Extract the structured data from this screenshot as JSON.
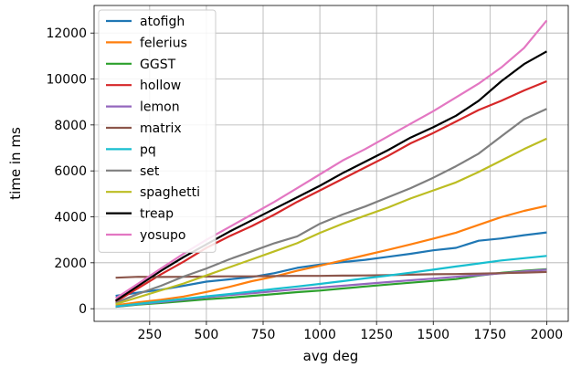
{
  "chart_data": {
    "type": "line",
    "title": "",
    "xlabel": "avg deg",
    "ylabel": "time in ms",
    "xlim": [
      5,
      2095
    ],
    "ylim": [
      -550,
      13200
    ],
    "xticks": [
      250,
      500,
      750,
      1000,
      1250,
      1500,
      1750,
      2000
    ],
    "yticks": [
      0,
      2000,
      4000,
      6000,
      8000,
      10000,
      12000
    ],
    "grid": true,
    "legend": "top-left",
    "x": [
      100,
      200,
      300,
      400,
      500,
      600,
      700,
      800,
      900,
      1000,
      1100,
      1200,
      1300,
      1400,
      1500,
      1600,
      1700,
      1800,
      1900,
      2000
    ],
    "series": [
      {
        "name": "atofigh",
        "color": "#1f77b4",
        "values": [
          560,
          700,
          830,
          1000,
          1180,
          1280,
          1380,
          1550,
          1780,
          1920,
          2030,
          2130,
          2260,
          2390,
          2540,
          2650,
          2960,
          3060,
          3200,
          3320
        ]
      },
      {
        "name": "felerius",
        "color": "#ff7f0e",
        "values": [
          150,
          280,
          390,
          530,
          730,
          950,
          1200,
          1400,
          1650,
          1870,
          2100,
          2330,
          2560,
          2800,
          3050,
          3310,
          3650,
          3990,
          4260,
          4480
        ]
      },
      {
        "name": "GGST",
        "color": "#2ca02c",
        "values": [
          80,
          180,
          250,
          330,
          410,
          480,
          560,
          640,
          720,
          790,
          880,
          970,
          1050,
          1130,
          1210,
          1290,
          1440,
          1560,
          1650,
          1720
        ]
      },
      {
        "name": "hollow",
        "color": "#d62728",
        "values": [
          300,
          900,
          1500,
          2050,
          2650,
          3150,
          3600,
          4100,
          4650,
          5150,
          5650,
          6150,
          6650,
          7200,
          7650,
          8150,
          8650,
          9050,
          9500,
          9900
        ]
      },
      {
        "name": "lemon",
        "color": "#9467bd",
        "values": [
          90,
          200,
          290,
          390,
          500,
          590,
          670,
          760,
          850,
          920,
          1000,
          1080,
          1160,
          1240,
          1310,
          1390,
          1460,
          1540,
          1620,
          1700
        ]
      },
      {
        "name": "matrix",
        "color": "#8c564b",
        "values": [
          1350,
          1390,
          1380,
          1390,
          1400,
          1410,
          1410,
          1420,
          1430,
          1430,
          1440,
          1450,
          1460,
          1480,
          1500,
          1510,
          1530,
          1550,
          1570,
          1600
        ]
      },
      {
        "name": "pq",
        "color": "#17becf",
        "values": [
          100,
          210,
          320,
          430,
          540,
          640,
          750,
          860,
          970,
          1080,
          1200,
          1320,
          1440,
          1570,
          1700,
          1840,
          1970,
          2100,
          2200,
          2300
        ]
      },
      {
        "name": "set",
        "color": "#7f7f7f",
        "values": [
          250,
          650,
          1000,
          1400,
          1750,
          2150,
          2500,
          2850,
          3150,
          3700,
          4100,
          4450,
          4850,
          5250,
          5700,
          6200,
          6750,
          7500,
          8250,
          8700
        ]
      },
      {
        "name": "spaghetti",
        "color": "#bcbd22",
        "values": [
          200,
          500,
          800,
          1100,
          1450,
          1800,
          2150,
          2500,
          2850,
          3300,
          3700,
          4050,
          4400,
          4800,
          5150,
          5500,
          5950,
          6450,
          6950,
          7400
        ]
      },
      {
        "name": "treap",
        "color": "#000000",
        "values": [
          350,
          1000,
          1650,
          2250,
          2800,
          3350,
          3850,
          4350,
          4850,
          5350,
          5900,
          6400,
          6900,
          7450,
          7900,
          8400,
          9050,
          9900,
          10650,
          11200
        ]
      },
      {
        "name": "yosupo",
        "color": "#e377c2",
        "values": [
          450,
          1100,
          1750,
          2400,
          3000,
          3550,
          4100,
          4650,
          5250,
          5850,
          6450,
          6950,
          7500,
          8050,
          8600,
          9200,
          9800,
          10500,
          11350,
          12550
        ]
      }
    ]
  }
}
